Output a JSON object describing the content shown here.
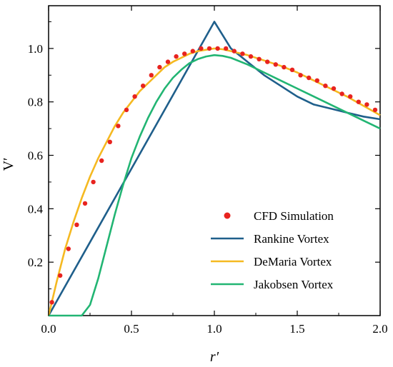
{
  "chart_data": {
    "type": "line",
    "xlabel": "r′",
    "ylabel": "V′",
    "xlim": [
      0.0,
      2.0
    ],
    "ylim": [
      0.0,
      1.16
    ],
    "x_ticks": [
      "0.0",
      "0.5",
      "1.0",
      "1.5",
      "2.0"
    ],
    "y_ticks": [
      "0.2",
      "0.4",
      "0.6",
      "0.8",
      "1.0"
    ],
    "grid": false,
    "legend_position": "bottom-right",
    "series": [
      {
        "name": "CFD Simulation",
        "style": "scatter",
        "color": "#e8231f",
        "x": [
          0.02,
          0.07,
          0.12,
          0.17,
          0.22,
          0.27,
          0.32,
          0.37,
          0.42,
          0.47,
          0.52,
          0.57,
          0.62,
          0.67,
          0.72,
          0.77,
          0.82,
          0.87,
          0.92,
          0.97,
          1.02,
          1.07,
          1.12,
          1.17,
          1.22,
          1.27,
          1.32,
          1.37,
          1.42,
          1.47,
          1.52,
          1.57,
          1.62,
          1.67,
          1.72,
          1.77,
          1.82,
          1.87,
          1.92,
          1.97
        ],
        "y": [
          0.05,
          0.15,
          0.25,
          0.34,
          0.42,
          0.5,
          0.58,
          0.65,
          0.71,
          0.77,
          0.82,
          0.86,
          0.9,
          0.93,
          0.95,
          0.97,
          0.98,
          0.99,
          1.0,
          1.0,
          1.0,
          1.0,
          0.99,
          0.98,
          0.97,
          0.96,
          0.95,
          0.94,
          0.93,
          0.92,
          0.9,
          0.89,
          0.88,
          0.86,
          0.85,
          0.83,
          0.82,
          0.8,
          0.79,
          0.77
        ]
      },
      {
        "name": "Rankine Vortex",
        "style": "line",
        "color": "#1f5f8b",
        "x": [
          0.0,
          1.0,
          1.1,
          1.2,
          1.3,
          1.4,
          1.5,
          1.6,
          1.7,
          1.8,
          1.9,
          2.0
        ],
        "y": [
          0.0,
          1.1,
          1.0,
          0.95,
          0.9,
          0.86,
          0.82,
          0.79,
          0.775,
          0.76,
          0.745,
          0.735
        ]
      },
      {
        "name": "DeMaria Vortex",
        "style": "line",
        "color": "#f5b921",
        "x": [
          0.0,
          0.05,
          0.1,
          0.15,
          0.2,
          0.25,
          0.3,
          0.35,
          0.4,
          0.45,
          0.5,
          0.55,
          0.6,
          0.65,
          0.7,
          0.75,
          0.8,
          0.85,
          0.9,
          0.95,
          1.0,
          1.05,
          1.1,
          1.2,
          1.3,
          1.4,
          1.5,
          1.6,
          1.7,
          1.8,
          1.9,
          2.0
        ],
        "y": [
          0.0,
          0.13,
          0.25,
          0.35,
          0.44,
          0.52,
          0.59,
          0.65,
          0.71,
          0.76,
          0.8,
          0.84,
          0.87,
          0.9,
          0.93,
          0.95,
          0.965,
          0.98,
          0.99,
          0.995,
          1.0,
          0.997,
          0.99,
          0.975,
          0.955,
          0.935,
          0.91,
          0.88,
          0.85,
          0.82,
          0.785,
          0.75
        ]
      },
      {
        "name": "Jakobsen Vortex",
        "style": "line",
        "color": "#22b573",
        "x": [
          0.0,
          0.2,
          0.25,
          0.3,
          0.35,
          0.4,
          0.45,
          0.5,
          0.55,
          0.6,
          0.65,
          0.7,
          0.75,
          0.8,
          0.85,
          0.9,
          0.95,
          1.0,
          1.05,
          1.1,
          1.2,
          1.3,
          1.4,
          1.5,
          1.6,
          1.7,
          1.8,
          1.9,
          2.0
        ],
        "y": [
          0.0,
          0.0,
          0.04,
          0.14,
          0.26,
          0.38,
          0.49,
          0.59,
          0.67,
          0.74,
          0.8,
          0.85,
          0.89,
          0.92,
          0.945,
          0.96,
          0.97,
          0.975,
          0.972,
          0.965,
          0.94,
          0.91,
          0.88,
          0.85,
          0.82,
          0.79,
          0.76,
          0.73,
          0.7
        ]
      }
    ]
  }
}
